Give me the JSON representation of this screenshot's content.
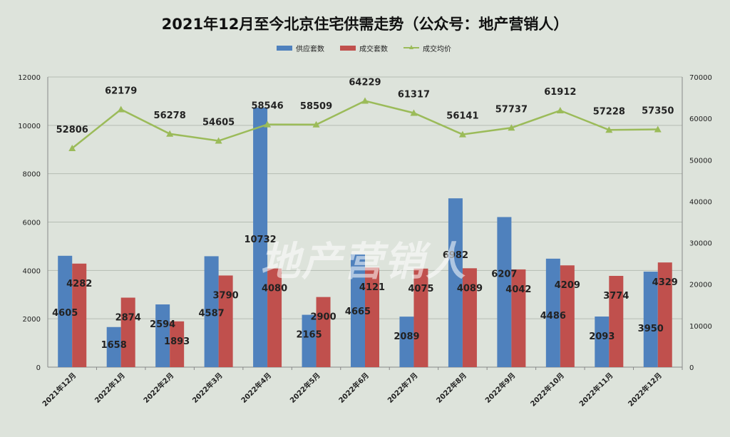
{
  "title": "2021年12月至今北京住宅供需走势（公众号：地产营销人）",
  "watermark": "地产营销人",
  "colors": {
    "supply": "#4f81bd",
    "deal": "#c0504d",
    "price": "#9bbb59",
    "background": "#dde3db"
  },
  "chart_data": {
    "type": "bar",
    "title": "2021年12月至今北京住宅供需走势（公众号：地产营销人）",
    "categories": [
      "2021年12月",
      "2022年1月",
      "2022年2月",
      "2022年3月",
      "2022年4月",
      "2022年5月",
      "2022年6月",
      "2022年7月",
      "2022年8月",
      "2022年9月",
      "2022年10月",
      "2022年11月",
      "2022年12月"
    ],
    "series": [
      {
        "name": "供应套数",
        "type": "bar",
        "axis": "left",
        "color": "#4f81bd",
        "values": [
          4605,
          1658,
          2594,
          4587,
          10732,
          2165,
          4665,
          2089,
          6982,
          6207,
          4486,
          2093,
          3950
        ]
      },
      {
        "name": "成交套数",
        "type": "bar",
        "axis": "left",
        "color": "#c0504d",
        "values": [
          4282,
          2874,
          1893,
          3790,
          4080,
          2900,
          4121,
          4075,
          4089,
          4042,
          4209,
          3774,
          4329
        ]
      },
      {
        "name": "成交均价",
        "type": "line",
        "axis": "right",
        "color": "#9bbb59",
        "marker": "triangle",
        "values": [
          52806,
          62179,
          56278,
          54605,
          58546,
          58509,
          64229,
          61317,
          56141,
          57737,
          61912,
          57228,
          57350
        ]
      }
    ],
    "ylim": [
      0,
      12000
    ],
    "yticks": [
      0,
      2000,
      4000,
      6000,
      8000,
      10000,
      12000
    ],
    "y2lim": [
      0,
      70000
    ],
    "y2ticks": [
      0,
      10000,
      20000,
      30000,
      40000,
      50000,
      60000,
      70000
    ],
    "grid": true,
    "legend": "top-center"
  }
}
